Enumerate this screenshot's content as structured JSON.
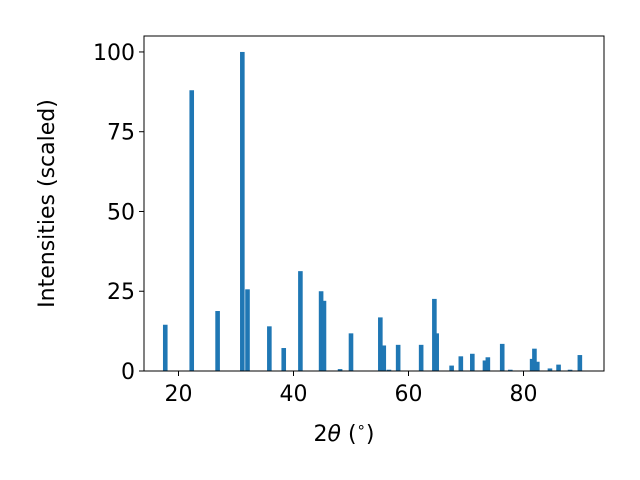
{
  "chart_data": {
    "type": "bar",
    "title": "",
    "xlabel_main": "2",
    "xlabel_theta": "θ",
    "xlabel_unit": " (",
    "xlabel_deg": "∘",
    "xlabel_close": ")",
    "ylabel": "Intensities (scaled)",
    "xlim": [
      14,
      94
    ],
    "ylim": [
      0,
      105
    ],
    "xticks": [
      20,
      40,
      60,
      80
    ],
    "yticks": [
      0,
      25,
      50,
      75,
      100
    ],
    "bar_color": "#1f77b4",
    "bar_width": 0.8,
    "grid": false,
    "legend": "none",
    "bars": [
      {
        "x": 17.7,
        "y": 14.5
      },
      {
        "x": 22.3,
        "y": 88.0
      },
      {
        "x": 26.8,
        "y": 18.8
      },
      {
        "x": 31.1,
        "y": 100.0
      },
      {
        "x": 32.0,
        "y": 25.6
      },
      {
        "x": 35.8,
        "y": 14.0
      },
      {
        "x": 38.3,
        "y": 7.2
      },
      {
        "x": 41.2,
        "y": 31.3
      },
      {
        "x": 44.8,
        "y": 25.0
      },
      {
        "x": 45.3,
        "y": 22.0
      },
      {
        "x": 48.1,
        "y": 0.6
      },
      {
        "x": 50.0,
        "y": 11.8
      },
      {
        "x": 55.1,
        "y": 16.8
      },
      {
        "x": 55.7,
        "y": 8.0
      },
      {
        "x": 56.6,
        "y": 0.4
      },
      {
        "x": 58.2,
        "y": 8.2
      },
      {
        "x": 62.2,
        "y": 8.2
      },
      {
        "x": 64.5,
        "y": 22.6
      },
      {
        "x": 64.9,
        "y": 11.8
      },
      {
        "x": 67.5,
        "y": 1.7
      },
      {
        "x": 69.1,
        "y": 4.6
      },
      {
        "x": 71.1,
        "y": 5.4
      },
      {
        "x": 73.3,
        "y": 3.3
      },
      {
        "x": 73.8,
        "y": 4.3
      },
      {
        "x": 76.3,
        "y": 8.5
      },
      {
        "x": 77.7,
        "y": 0.4
      },
      {
        "x": 81.5,
        "y": 3.8
      },
      {
        "x": 81.9,
        "y": 7.0
      },
      {
        "x": 82.4,
        "y": 2.9
      },
      {
        "x": 84.6,
        "y": 0.8
      },
      {
        "x": 86.1,
        "y": 2.0
      },
      {
        "x": 88.1,
        "y": 0.4
      },
      {
        "x": 89.8,
        "y": 5.0
      }
    ]
  }
}
